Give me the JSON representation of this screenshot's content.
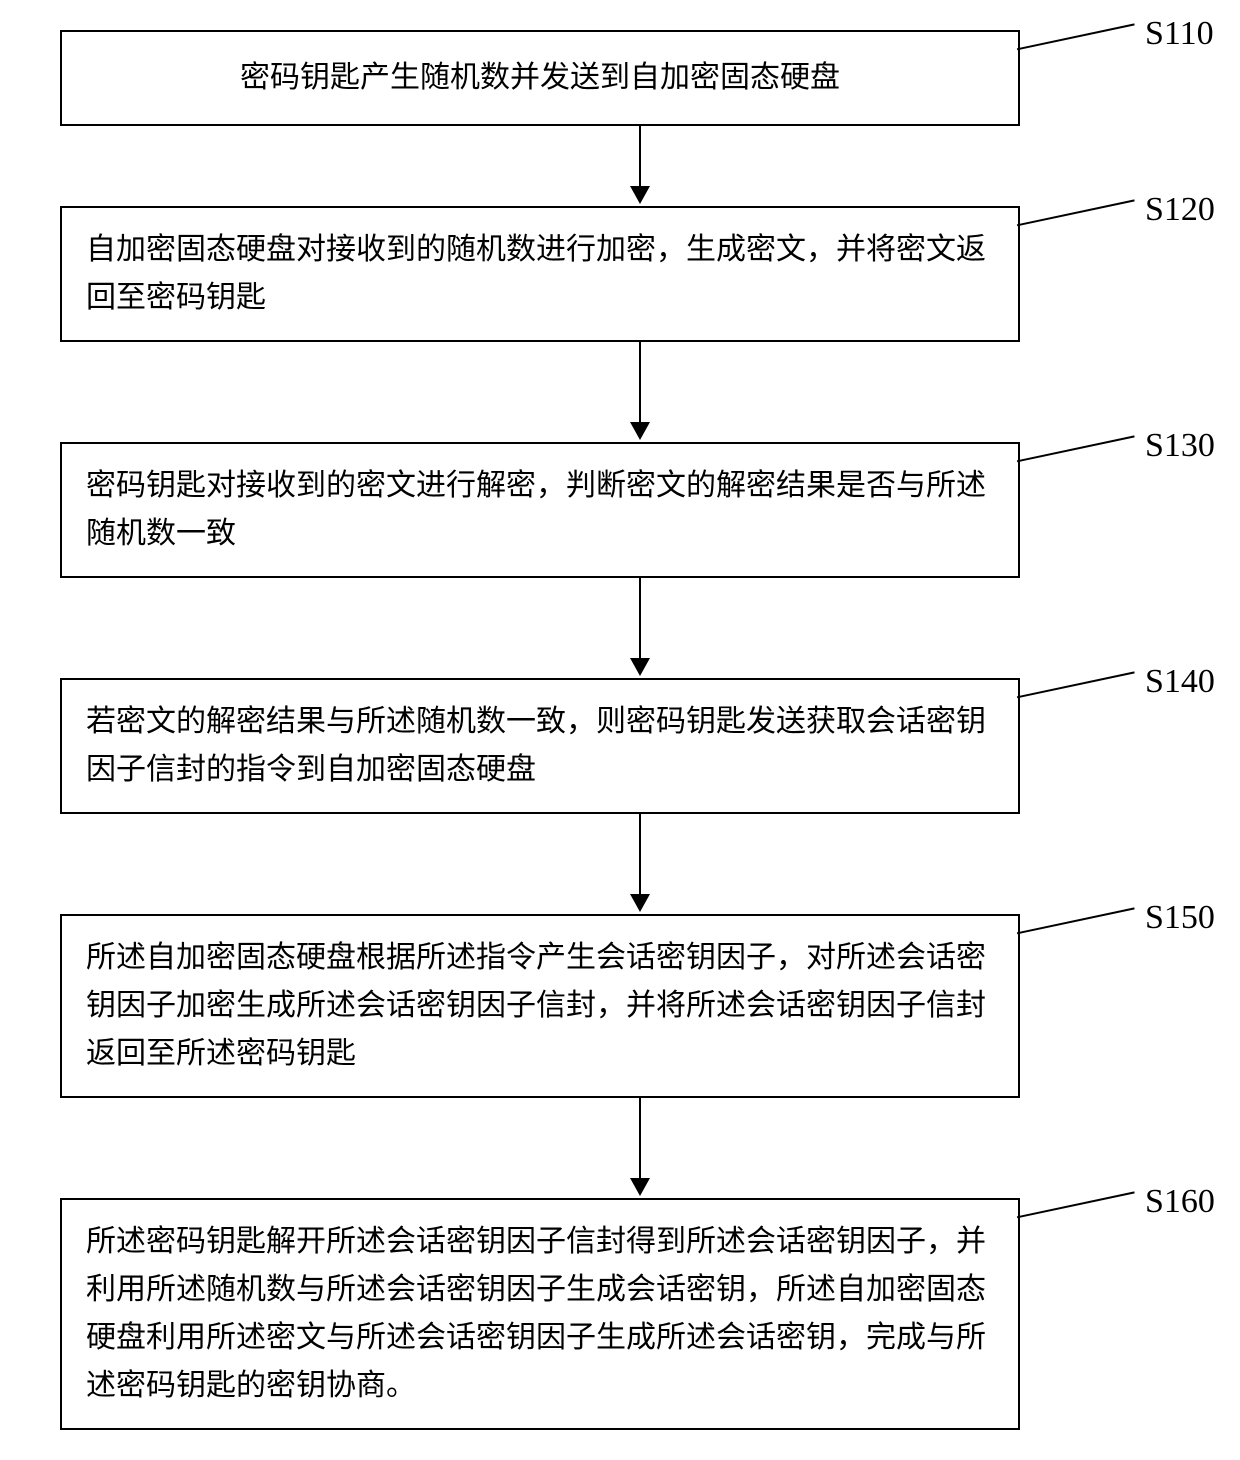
{
  "flowchart": {
    "type": "flowchart",
    "direction": "vertical",
    "box_border_color": "#000000",
    "box_background": "#ffffff",
    "box_border_width": 2,
    "text_color": "#000000",
    "font_size": 30,
    "label_font_size": 34,
    "arrow_color": "#000000",
    "steps": [
      {
        "id": "S110",
        "label": "S110",
        "text": "密码钥匙产生随机数并发送到自加密固态硬盘",
        "single_line": true
      },
      {
        "id": "S120",
        "label": "S120",
        "text": "自加密固态硬盘对接收到的随机数进行加密，生成密文，并将密文返回至密码钥匙",
        "single_line": false
      },
      {
        "id": "S130",
        "label": "S130",
        "text": "密码钥匙对接收到的密文进行解密，判断密文的解密结果是否与所述随机数一致",
        "single_line": false
      },
      {
        "id": "S140",
        "label": "S140",
        "text": "若密文的解密结果与所述随机数一致，则密码钥匙发送获取会话密钥因子信封的指令到自加密固态硬盘",
        "single_line": false
      },
      {
        "id": "S150",
        "label": "S150",
        "text": "所述自加密固态硬盘根据所述指令产生会话密钥因子，对所述会话密钥因子加密生成所述会话密钥因子信封，并将所述会话密钥因子信封返回至所述密码钥匙",
        "single_line": false
      },
      {
        "id": "S160",
        "label": "S160",
        "text": "所述密码钥匙解开所述会话密钥因子信封得到所述会话密钥因子，并利用所述随机数与所述会话密钥因子生成会话密钥，所述自加密固态硬盘利用所述密文与所述会话密钥因子生成所述会话密钥，完成与所述密码钥匙的密钥协商。",
        "single_line": false
      }
    ]
  }
}
